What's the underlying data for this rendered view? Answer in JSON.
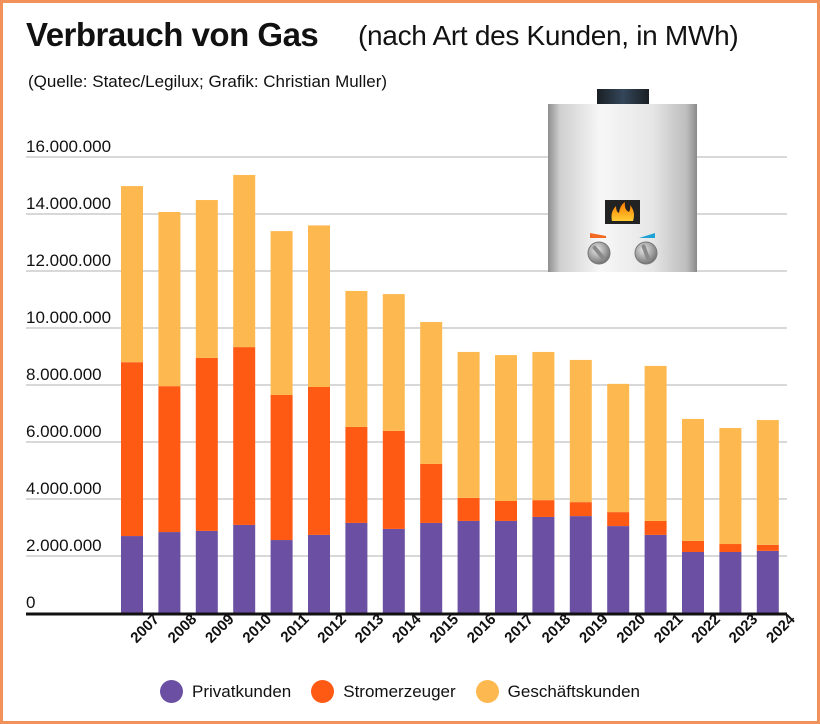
{
  "header": {
    "title": "Verbrauch von Gas",
    "subtitle": "(nach Art des Kunden, in MWh)",
    "source": "(Quelle: Statec/Legilux; Grafik: Christian Muller)"
  },
  "illustration": "gas-boiler-icon",
  "colors": {
    "border": "#F2915A",
    "privatkunden": "#6A4FA3",
    "stromerzeuger": "#FF5A14",
    "geschaeftskunden": "#FDB94F",
    "grid": "#CCCCCC",
    "axis": "#111111"
  },
  "chart_data": {
    "type": "bar",
    "stacked": true,
    "title": "Verbrauch von Gas",
    "subtitle": "(nach Art des Kunden, in MWh)",
    "xlabel": "",
    "ylabel": "",
    "ylim": [
      0,
      16000000
    ],
    "yticks": [
      0,
      2000000,
      4000000,
      6000000,
      8000000,
      10000000,
      12000000,
      14000000,
      16000000
    ],
    "ytick_labels": [
      "0",
      "2.000.000",
      "4.000.000",
      "6.000.000",
      "8.000.000",
      "10.000.000",
      "12.000.000",
      "14.000.000",
      "16.000.000"
    ],
    "grid": true,
    "legend_position": "bottom",
    "categories": [
      "2007",
      "2008",
      "2009",
      "2010",
      "2011",
      "2012",
      "2013",
      "2014",
      "2015",
      "2016",
      "2017",
      "2018",
      "2019",
      "2020",
      "2021",
      "2022",
      "2023",
      "2024"
    ],
    "series": [
      {
        "name": "Privatkunden",
        "values": [
          2700000,
          2840000,
          2880000,
          3090000,
          2560000,
          2740000,
          3160000,
          2950000,
          3160000,
          3230000,
          3230000,
          3370000,
          3400000,
          3050000,
          2740000,
          2140000,
          2140000,
          2180000
        ]
      },
      {
        "name": "Stromerzeuger",
        "values": [
          6100000,
          5120000,
          6070000,
          6240000,
          5090000,
          5190000,
          3370000,
          3440000,
          2070000,
          810000,
          700000,
          590000,
          490000,
          490000,
          490000,
          390000,
          280000,
          210000
        ]
      },
      {
        "name": "Geschäftskunden",
        "values": [
          6180000,
          6110000,
          5540000,
          6040000,
          5750000,
          5670000,
          4770000,
          4800000,
          4980000,
          5120000,
          5120000,
          5200000,
          4990000,
          4500000,
          5440000,
          4280000,
          4070000,
          4380000
        ]
      }
    ]
  }
}
